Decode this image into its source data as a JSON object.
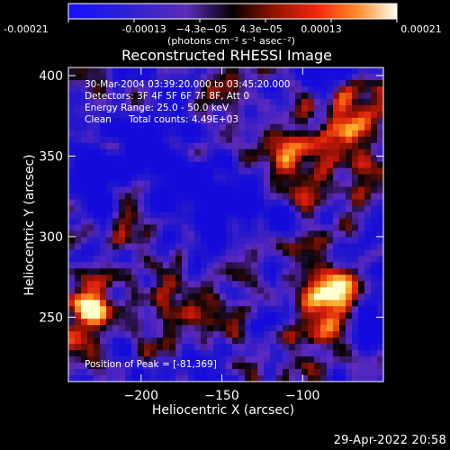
{
  "colors": {
    "background": "#000000",
    "text": "#ffffff",
    "low": "#2a1ee6",
    "mid_low": "#6b2cc9",
    "mid": "#0b0505",
    "mid_high": "#c91c09",
    "high": "#f46b12",
    "peak": "#ffffd2"
  },
  "colorbar": {
    "tick_labels": [
      "-0.00021",
      "-0.00013",
      "−4.3e−05",
      "4.3e−05",
      "0.00013",
      "0.00021"
    ],
    "unit": "(photons cm⁻² s⁻¹ asec⁻²)",
    "min": -0.00021,
    "max": 0.00021
  },
  "chart_data": {
    "type": "heatmap",
    "title": "Reconstructed RHESSI Image",
    "xlabel": "Heliocentric X (arcsec)",
    "ylabel": "Heliocentric Y (arcsec)",
    "xlim": [
      -245,
      -50
    ],
    "ylim": [
      210,
      405
    ],
    "xticks": [
      -200,
      -150,
      -100
    ],
    "yticks": [
      250,
      300,
      350,
      400
    ],
    "annotations": {
      "time_range": "30-Mar-2004 03:39:20.000 to 03:45:20.000",
      "detectors": "Detectors: 3F 4F 5F 6F 7F 8F, Att 0",
      "energy": "Energy Range: 25.0 - 50.0 keV",
      "method": "Clean",
      "total_counts": "Total counts: 4.49E+03",
      "peak": "Position of Peak = [-81,369]"
    }
  },
  "footer": {
    "timestamp": "29-Apr-2022 20:58"
  }
}
